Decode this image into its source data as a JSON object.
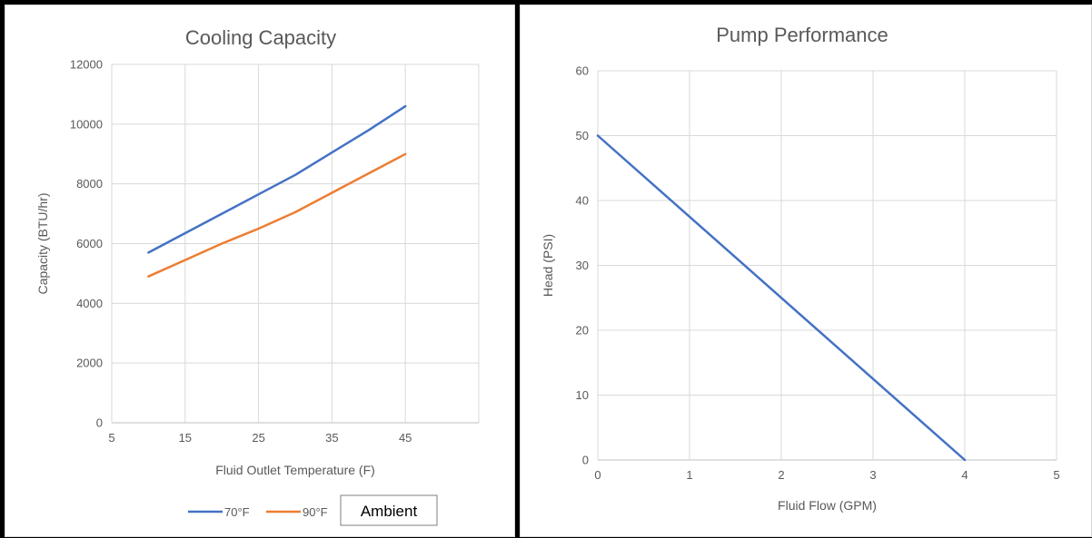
{
  "colors": {
    "series_blue": "#4472C4",
    "series_orange": "#ED7D31",
    "grid": "#d9d9d9",
    "text": "#595959"
  },
  "chart_data": [
    {
      "type": "line",
      "title": "Cooling Capacity",
      "xlabel": "Fluid Outlet Temperature (F)",
      "ylabel": "Capacity (BTU/hr)",
      "xlim": [
        5,
        55
      ],
      "ylim": [
        0,
        12000
      ],
      "xticks": [
        5,
        15,
        25,
        35,
        45
      ],
      "yticks": [
        0,
        2000,
        4000,
        6000,
        8000,
        10000,
        12000
      ],
      "grid": true,
      "legend_position": "bottom",
      "legend_annotation": "Ambient",
      "series": [
        {
          "name": "70°F",
          "x": [
            10,
            15,
            20,
            25,
            30,
            35,
            40,
            45
          ],
          "y": [
            5700,
            6350,
            7000,
            7650,
            8300,
            9050,
            9800,
            10600
          ]
        },
        {
          "name": "90°F",
          "x": [
            10,
            15,
            20,
            25,
            30,
            35,
            40,
            45
          ],
          "y": [
            4900,
            5450,
            6000,
            6500,
            7050,
            7700,
            8350,
            9000
          ]
        }
      ]
    },
    {
      "type": "line",
      "title": "Pump Performance",
      "xlabel": "Fluid Flow (GPM)",
      "ylabel": "Head (PSI)",
      "xlim": [
        0,
        5
      ],
      "ylim": [
        0,
        60
      ],
      "xticks": [
        0,
        1,
        2,
        3,
        4,
        5
      ],
      "yticks": [
        0,
        10,
        20,
        30,
        40,
        50,
        60
      ],
      "grid": true,
      "series": [
        {
          "x": [
            0,
            4
          ],
          "y": [
            50,
            0
          ]
        }
      ]
    }
  ]
}
